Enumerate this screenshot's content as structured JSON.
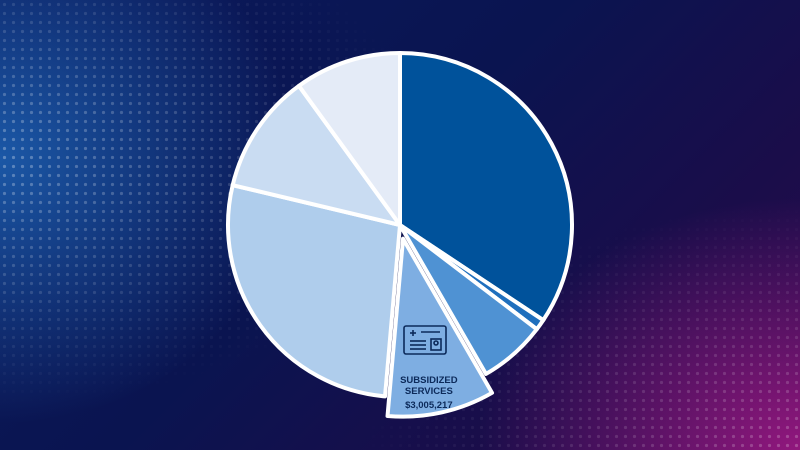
{
  "chart_data": {
    "type": "pie",
    "categories": [
      null,
      null,
      null,
      "SUBSIDIZED SERVICES",
      null,
      null,
      null
    ],
    "values": [
      10612000,
      318000,
      1949000,
      3005217,
      8449000,
      3486000,
      3091000
    ],
    "value_labels": [
      null,
      null,
      null,
      "$3,005,217",
      null,
      null,
      null
    ],
    "colors": [
      "#00529b",
      "#1f6fbd",
      "#4f92d3",
      "#7eaee2",
      "#afcdec",
      "#c9dcf2",
      "#e4ebf7"
    ],
    "exploded_index": 3
  }
}
